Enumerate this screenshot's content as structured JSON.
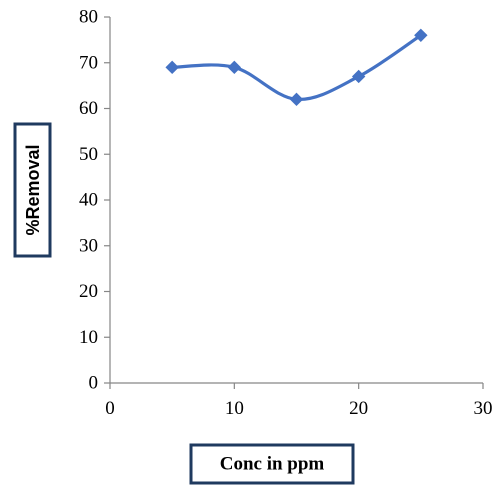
{
  "chart_data": {
    "type": "line",
    "title": "",
    "xlabel": "Conc in ppm",
    "ylabel": "%Removal",
    "xlim": [
      0,
      30
    ],
    "ylim": [
      0,
      80
    ],
    "x_ticks": [
      "0",
      "10",
      "20",
      "30"
    ],
    "y_ticks": [
      "0",
      "10",
      "20",
      "30",
      "40",
      "50",
      "60",
      "70",
      "80"
    ],
    "grid": false,
    "legend": "none",
    "smooth": true,
    "series": [
      {
        "color": "#4472C4",
        "marker": "diamond",
        "points": [
          {
            "x": 5,
            "y": 69
          },
          {
            "x": 10,
            "y": 69
          },
          {
            "x": 15,
            "y": 62
          },
          {
            "x": 20,
            "y": 67
          },
          {
            "x": 25,
            "y": 76
          }
        ]
      }
    ]
  }
}
